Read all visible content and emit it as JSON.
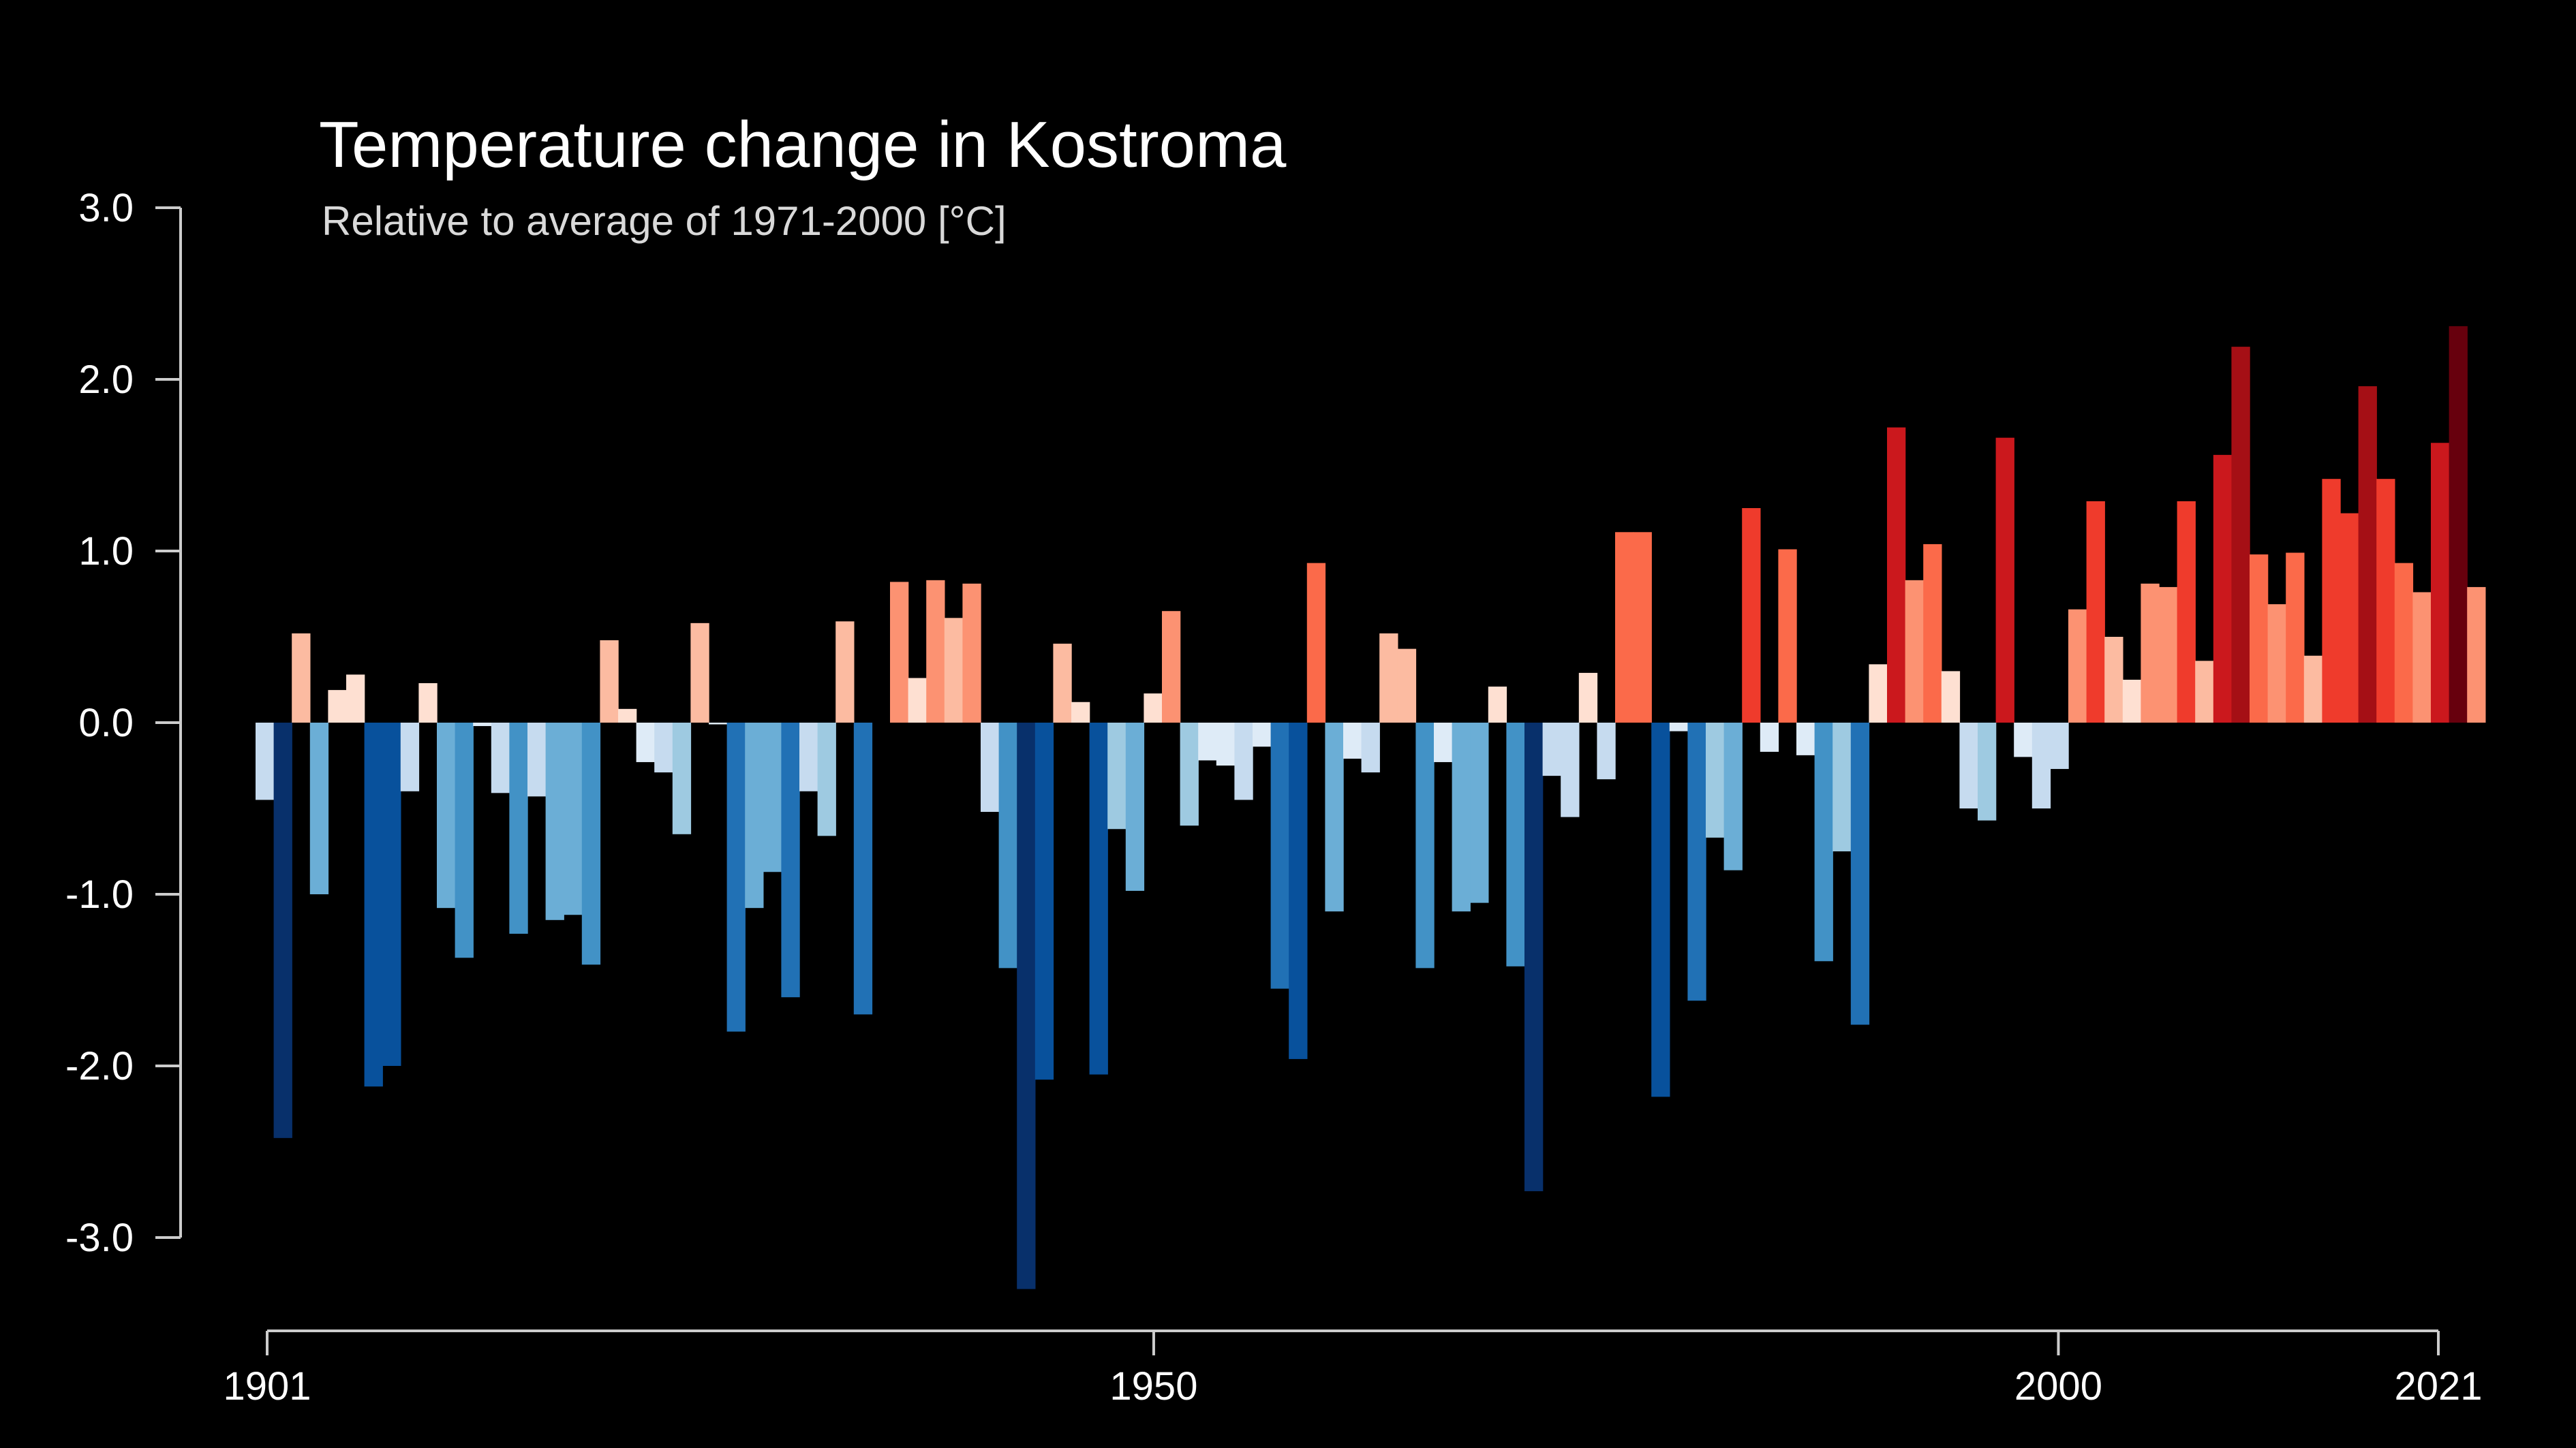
{
  "chart_data": {
    "type": "bar",
    "title": "Temperature change in Kostroma",
    "subtitle": "Relative to average of 1971-2000  [°C]",
    "xlabel": "",
    "ylabel": "",
    "x_start": 1901,
    "x_end": 2021,
    "xlim": [
      1901,
      2021
    ],
    "ylim": [
      -3.3,
      3.0
    ],
    "y_ticks": [
      3.0,
      2.0,
      1.0,
      0.0,
      -1.0,
      -2.0,
      -3.0
    ],
    "y_tick_labels": [
      "3.0",
      "2.0",
      "1.0",
      "0.0",
      "-1.0",
      "-2.0",
      "-3.0"
    ],
    "x_ticks": [
      1901,
      1950,
      2000,
      2021
    ],
    "x_tick_labels": [
      "1901",
      "1950",
      "2000",
      "2021"
    ],
    "grid": false,
    "legend": "none",
    "colors": {
      "background": "#000000",
      "axis": "#cccccc",
      "text": "#ffffff",
      "subtitle": "#d9d9d9"
    },
    "values": [
      -0.45,
      -2.42,
      0.52,
      -1.0,
      0.19,
      0.28,
      -2.12,
      -2.0,
      -0.4,
      0.23,
      -1.08,
      -1.37,
      -0.02,
      -0.41,
      -1.23,
      -0.43,
      -1.15,
      -1.12,
      -1.41,
      0.48,
      0.08,
      -0.23,
      -0.29,
      -0.65,
      0.58,
      -0.01,
      -1.8,
      -1.08,
      -0.87,
      -1.6,
      -0.4,
      -0.66,
      0.59,
      -1.7,
      0.0,
      0.82,
      0.26,
      0.83,
      0.61,
      0.81,
      -0.52,
      -1.43,
      -3.3,
      -2.08,
      0.46,
      0.12,
      -2.05,
      -0.62,
      -0.98,
      0.17,
      0.65,
      -0.6,
      -0.22,
      -0.25,
      -0.45,
      -0.14,
      -1.55,
      -1.96,
      0.93,
      -1.1,
      -0.21,
      -0.29,
      0.52,
      0.43,
      -1.43,
      -0.23,
      -1.1,
      -1.05,
      0.21,
      -1.42,
      -2.73,
      -0.31,
      -0.55,
      0.29,
      -0.33,
      1.11,
      1.11,
      -2.18,
      -0.05,
      -1.62,
      -0.67,
      -0.86,
      1.25,
      -0.17,
      1.01,
      -0.19,
      -1.39,
      -0.75,
      -1.76,
      0.34,
      1.72,
      0.83,
      1.04,
      0.3,
      -0.5,
      -0.57,
      1.66,
      -0.2,
      -0.5,
      -0.27,
      0.66,
      1.29,
      0.5,
      0.25,
      0.81,
      0.79,
      1.29,
      0.36,
      1.56,
      2.19,
      0.98,
      0.69,
      0.99,
      0.39,
      1.42,
      1.22,
      1.96,
      1.42,
      0.93,
      0.76,
      1.63,
      2.31,
      0.79
    ]
  }
}
